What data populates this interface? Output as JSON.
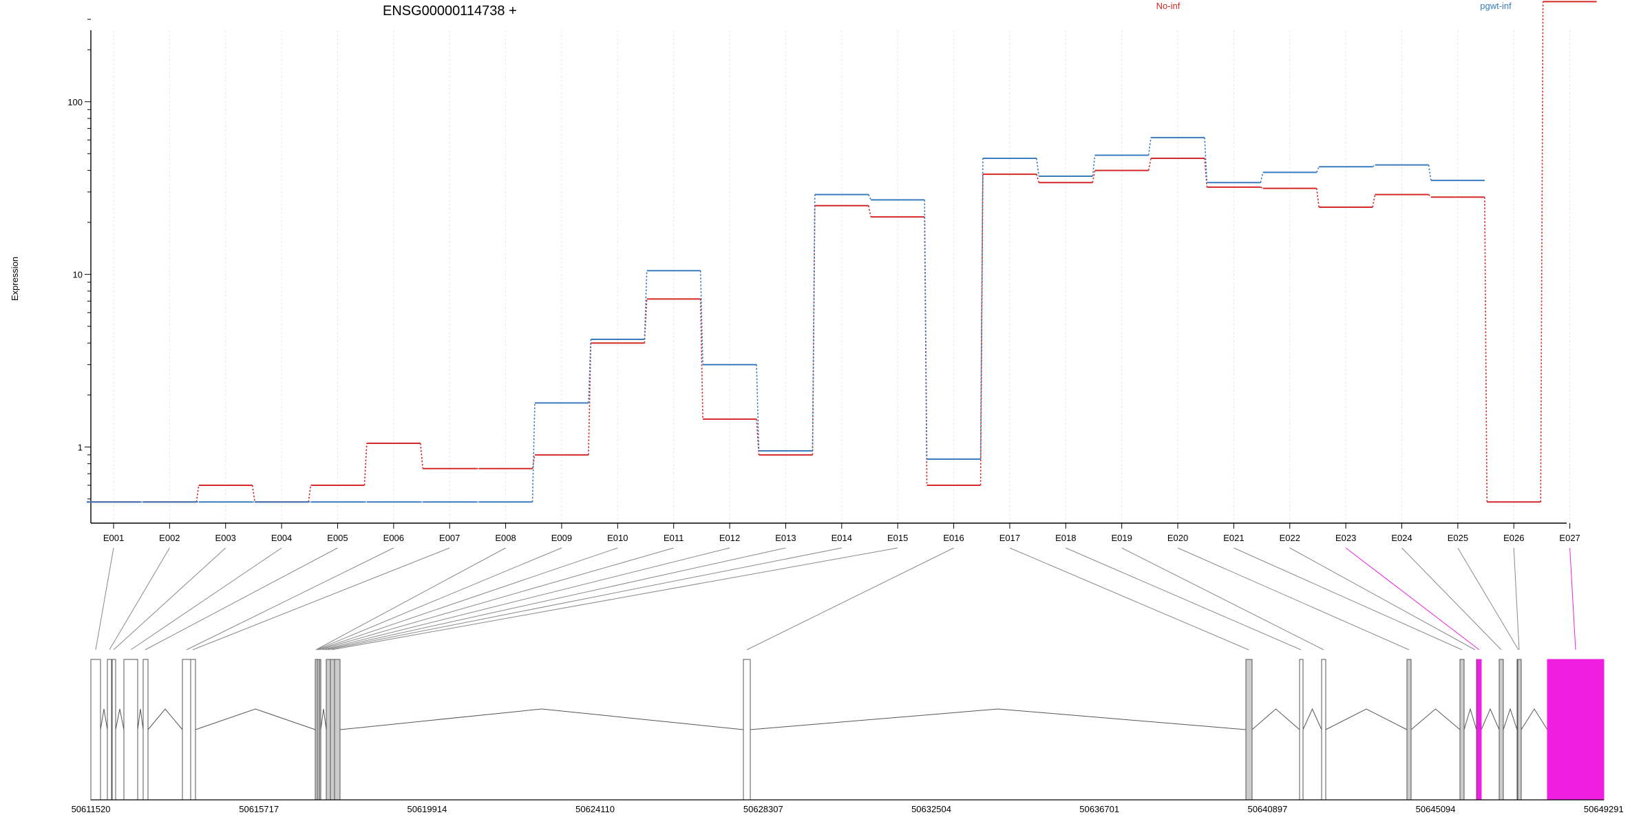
{
  "chart_data": {
    "type": "line",
    "title": "ENSG00000114738 +",
    "ylabel": "Expression",
    "y_scale": "log",
    "y_ticks": [
      1,
      10,
      100
    ],
    "ylim": [
      0.48,
      400
    ],
    "grid": "vertical dotted at each exon",
    "categories": [
      "E001",
      "E002",
      "E003",
      "E004",
      "E005",
      "E006",
      "E007",
      "E008",
      "E009",
      "E010",
      "E011",
      "E012",
      "E013",
      "E014",
      "E015",
      "E016",
      "E017",
      "E018",
      "E019",
      "E020",
      "E021",
      "E022",
      "E023",
      "E024",
      "E025",
      "E026",
      "E027"
    ],
    "series": [
      {
        "name": "No-inf",
        "color": "#d62728",
        "values": [
          0.48,
          0.48,
          0.6,
          0.48,
          0.6,
          1.05,
          0.75,
          0.75,
          0.9,
          4.0,
          7.2,
          1.45,
          0.9,
          25.0,
          21.5,
          0.6,
          38.0,
          34.0,
          40.0,
          47.0,
          32.0,
          31.5,
          24.5,
          29.0,
          28.0,
          0.48,
          380.0
        ]
      },
      {
        "name": "pgwt-inf",
        "color": "#3a7bbf",
        "values": [
          0.48,
          0.48,
          0.48,
          0.48,
          0.48,
          0.48,
          0.48,
          0.48,
          1.8,
          4.2,
          10.5,
          3.0,
          0.95,
          29.0,
          27.0,
          0.85,
          47.0,
          37.0,
          49.0,
          62.0,
          34.0,
          39.0,
          42.0,
          43.0,
          35.0,
          null,
          null
        ]
      }
    ],
    "legend_position": "top-right",
    "gene_model": {
      "coordinate_ticks": [
        "50611520",
        "50615717",
        "50619914",
        "50624110",
        "50628307",
        "50632504",
        "50636701",
        "50640897",
        "50645094",
        "50649291"
      ],
      "highlight_color": "#f01ee0",
      "highlighted_exons": [
        "E023",
        "E027"
      ],
      "exon_fill": {
        "E001": "#ffffff",
        "E002": "#ffffff",
        "E003": "#ffffff",
        "E004": "#ffffff",
        "E005": "#ffffff",
        "E006": "#ffffff",
        "E007": "#ffffff",
        "E008": "#cccccc",
        "E009": "#cccccc",
        "E010": "#cccccc",
        "E011": "#cccccc",
        "E012": "#cccccc",
        "E013": "#cccccc",
        "E014": "#cccccc",
        "E015": "#cccccc",
        "E016": "#ffffff",
        "E017": "#cccccc",
        "E018": "#ffffff",
        "E019": "#ffffff",
        "E020": "#cccccc",
        "E021": "#cccccc",
        "E022": "#ffffff",
        "E023": "#f01ee0",
        "E024": "#cccccc",
        "E025": "#ffffff",
        "E026": "#cccccc",
        "E027": "#f01ee0"
      }
    }
  }
}
